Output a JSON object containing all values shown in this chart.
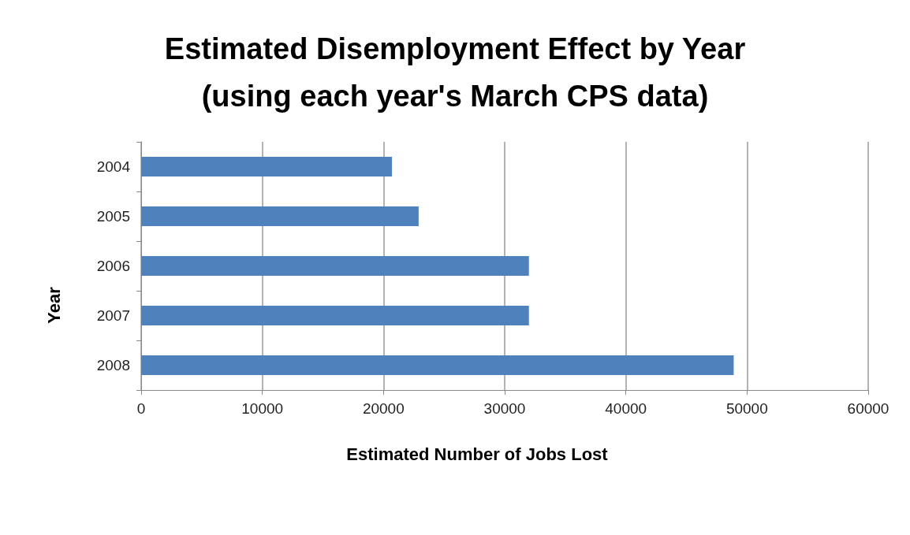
{
  "chart_data": {
    "type": "bar",
    "orientation": "horizontal",
    "title": "Estimated Disemployment Effect by Year",
    "subtitle": "(using each year's March CPS data)",
    "xlabel": "Estimated Number of Jobs Lost",
    "ylabel": "Year",
    "categories": [
      "2004",
      "2005",
      "2006",
      "2007",
      "2008"
    ],
    "values": [
      20700,
      22900,
      32000,
      32000,
      48900
    ],
    "color": "#4f81bd",
    "xlim": [
      0,
      60000
    ],
    "xticks": [
      0,
      10000,
      20000,
      30000,
      40000,
      50000,
      60000
    ],
    "grid": "x"
  }
}
